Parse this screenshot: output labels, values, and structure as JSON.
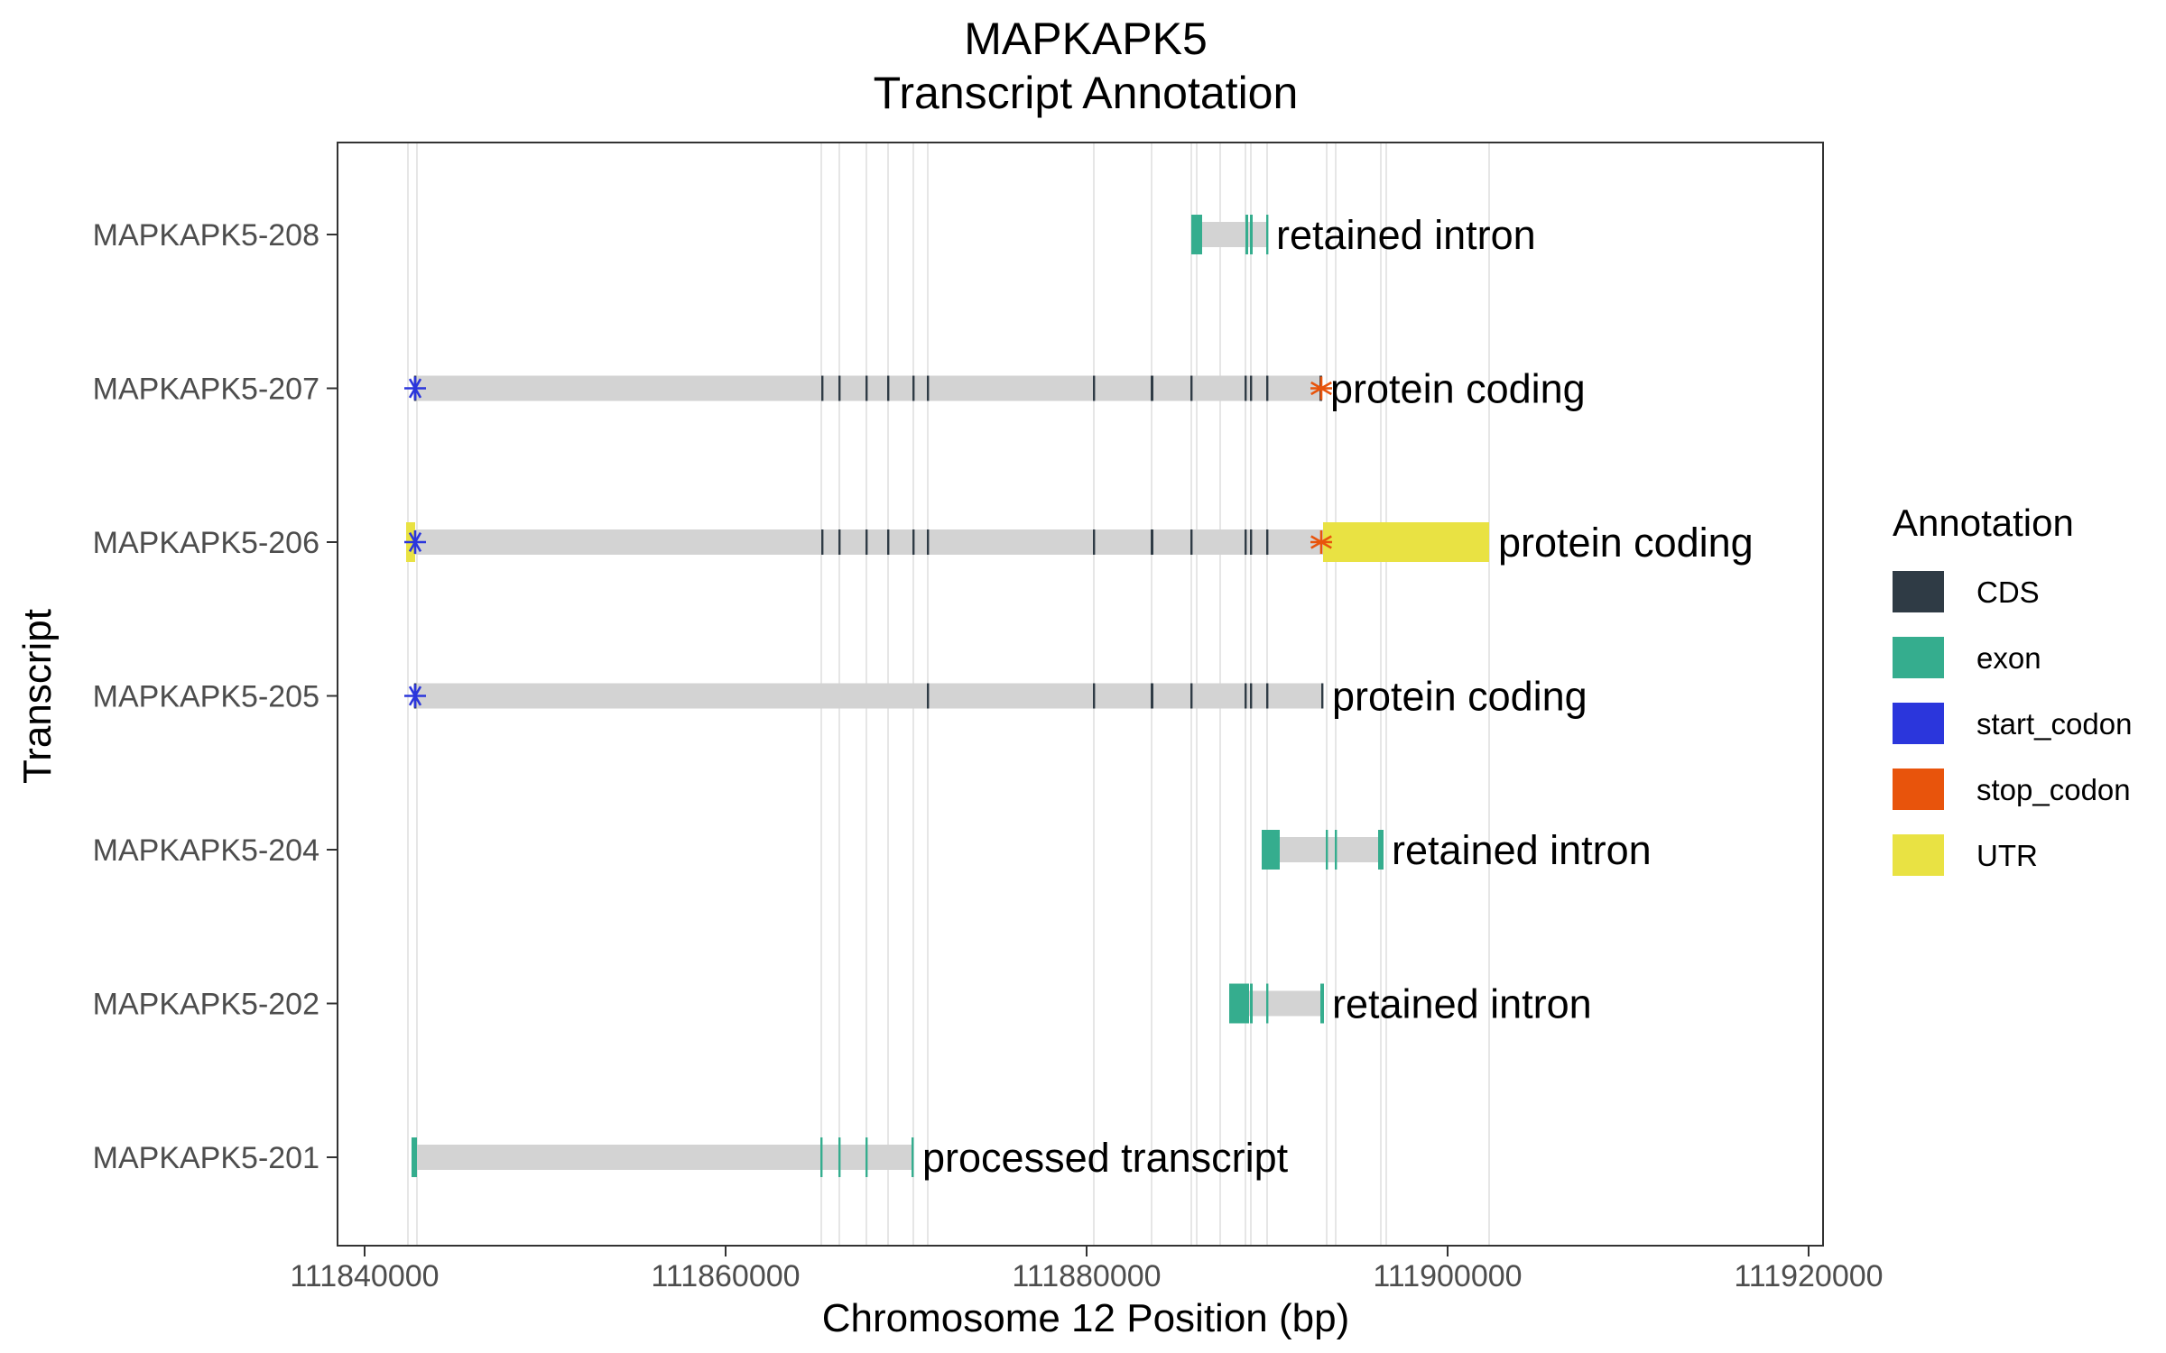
{
  "chart_data": {
    "type": "gene-track",
    "title_line1": "MAPKAPK5",
    "title_line2": "Transcript Annotation",
    "xlabel": "Chromosome 12 Position (bp)",
    "ylabel": "Transcript",
    "xlim": [
      111838500,
      111920800
    ],
    "xticks": [
      111840000,
      111860000,
      111880000,
      111900000,
      111920000
    ],
    "xtick_labels": [
      "111840000",
      "111860000",
      "111880000",
      "111900000",
      "111920000"
    ],
    "grid_vlines": [
      111842400,
      111842900,
      111865300,
      111866300,
      111867800,
      111869000,
      111870400,
      111871200,
      111880400,
      111883600,
      111885800,
      111886100,
      111887400,
      111888800,
      111889100,
      111890000,
      111893300,
      111893800,
      111896300,
      111896600,
      111902300
    ],
    "legend": {
      "title": "Annotation",
      "items": [
        {
          "key": "CDS",
          "label": "CDS",
          "color": "#2F3B45"
        },
        {
          "key": "exon",
          "label": "exon",
          "color": "#35AD8E"
        },
        {
          "key": "start_codon",
          "label": "start_codon",
          "color": "#2B36DC"
        },
        {
          "key": "stop_codon",
          "label": "stop_codon",
          "color": "#E8540C"
        },
        {
          "key": "UTR",
          "label": "UTR",
          "color": "#E9E243"
        }
      ]
    },
    "transcripts": [
      {
        "name": "MAPKAPK5-208",
        "biotype": "retained intron",
        "start": 111885800,
        "end": 111890000,
        "features": [
          {
            "type": "exon",
            "start": 111885800,
            "end": 111886400
          },
          {
            "type": "exon",
            "start": 111888800,
            "end": 111888950
          },
          {
            "type": "exon",
            "start": 111889050,
            "end": 111889200
          },
          {
            "type": "exon",
            "start": 111889950,
            "end": 111890050
          }
        ]
      },
      {
        "name": "MAPKAPK5-207",
        "biotype": "protein coding",
        "start": 111842700,
        "end": 111893000,
        "start_codon": 111842800,
        "stop_codon": 111893000,
        "features": [
          {
            "type": "CDS",
            "start": 111842750,
            "end": 111842870
          },
          {
            "type": "CDS",
            "start": 111865300,
            "end": 111865400
          },
          {
            "type": "CDS",
            "start": 111866250,
            "end": 111866350
          },
          {
            "type": "CDS",
            "start": 111867750,
            "end": 111867850
          },
          {
            "type": "CDS",
            "start": 111868950,
            "end": 111869050
          },
          {
            "type": "CDS",
            "start": 111870350,
            "end": 111870450
          },
          {
            "type": "CDS",
            "start": 111871150,
            "end": 111871250
          },
          {
            "type": "CDS",
            "start": 111880350,
            "end": 111880450
          },
          {
            "type": "CDS",
            "start": 111883550,
            "end": 111883700
          },
          {
            "type": "CDS",
            "start": 111885750,
            "end": 111885850
          },
          {
            "type": "CDS",
            "start": 111888750,
            "end": 111888850
          },
          {
            "type": "CDS",
            "start": 111889050,
            "end": 111889150
          },
          {
            "type": "CDS",
            "start": 111889950,
            "end": 111890050
          },
          {
            "type": "CDS",
            "start": 111892900,
            "end": 111893050
          }
        ]
      },
      {
        "name": "MAPKAPK5-206",
        "biotype": "protein coding",
        "start": 111842300,
        "end": 111902300,
        "start_codon": 111842800,
        "stop_codon": 111893000,
        "features": [
          {
            "type": "UTR",
            "start": 111842300,
            "end": 111842800
          },
          {
            "type": "CDS",
            "start": 111865300,
            "end": 111865400
          },
          {
            "type": "CDS",
            "start": 111866250,
            "end": 111866350
          },
          {
            "type": "CDS",
            "start": 111867750,
            "end": 111867850
          },
          {
            "type": "CDS",
            "start": 111868950,
            "end": 111869050
          },
          {
            "type": "CDS",
            "start": 111870350,
            "end": 111870450
          },
          {
            "type": "CDS",
            "start": 111871150,
            "end": 111871250
          },
          {
            "type": "CDS",
            "start": 111880350,
            "end": 111880450
          },
          {
            "type": "CDS",
            "start": 111883550,
            "end": 111883700
          },
          {
            "type": "CDS",
            "start": 111885750,
            "end": 111885850
          },
          {
            "type": "CDS",
            "start": 111888750,
            "end": 111888850
          },
          {
            "type": "CDS",
            "start": 111889050,
            "end": 111889150
          },
          {
            "type": "CDS",
            "start": 111889950,
            "end": 111890050
          },
          {
            "type": "UTR",
            "start": 111893100,
            "end": 111902300
          }
        ]
      },
      {
        "name": "MAPKAPK5-205",
        "biotype": "protein coding",
        "start": 111842700,
        "end": 111893100,
        "start_codon": 111842800,
        "features": [
          {
            "type": "CDS",
            "start": 111842750,
            "end": 111842870
          },
          {
            "type": "CDS",
            "start": 111871150,
            "end": 111871250
          },
          {
            "type": "CDS",
            "start": 111880350,
            "end": 111880450
          },
          {
            "type": "CDS",
            "start": 111883550,
            "end": 111883700
          },
          {
            "type": "CDS",
            "start": 111885750,
            "end": 111885850
          },
          {
            "type": "CDS",
            "start": 111888750,
            "end": 111888850
          },
          {
            "type": "CDS",
            "start": 111889050,
            "end": 111889150
          },
          {
            "type": "CDS",
            "start": 111889950,
            "end": 111890050
          },
          {
            "type": "CDS",
            "start": 111893000,
            "end": 111893100
          }
        ]
      },
      {
        "name": "MAPKAPK5-204",
        "biotype": "retained intron",
        "start": 111889700,
        "end": 111896400,
        "features": [
          {
            "type": "exon",
            "start": 111889700,
            "end": 111890700
          },
          {
            "type": "exon",
            "start": 111893250,
            "end": 111893350
          },
          {
            "type": "exon",
            "start": 111893750,
            "end": 111893850
          },
          {
            "type": "exon",
            "start": 111896150,
            "end": 111896450
          }
        ]
      },
      {
        "name": "MAPKAPK5-202",
        "biotype": "retained intron",
        "start": 111887900,
        "end": 111893100,
        "features": [
          {
            "type": "exon",
            "start": 111887900,
            "end": 111889000
          },
          {
            "type": "exon",
            "start": 111889050,
            "end": 111889200
          },
          {
            "type": "exon",
            "start": 111889950,
            "end": 111890050
          },
          {
            "type": "exon",
            "start": 111892950,
            "end": 111893150
          }
        ]
      },
      {
        "name": "MAPKAPK5-201",
        "biotype": "processed transcript",
        "start": 111842600,
        "end": 111870400,
        "features": [
          {
            "type": "exon",
            "start": 111842600,
            "end": 111842900
          },
          {
            "type": "exon",
            "start": 111865250,
            "end": 111865350
          },
          {
            "type": "exon",
            "start": 111866250,
            "end": 111866350
          },
          {
            "type": "exon",
            "start": 111867750,
            "end": 111867850
          },
          {
            "type": "exon",
            "start": 111870300,
            "end": 111870400
          }
        ]
      }
    ]
  }
}
